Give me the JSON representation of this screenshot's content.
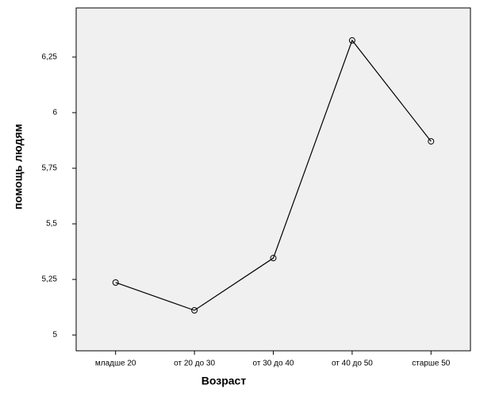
{
  "chart_data": {
    "type": "line",
    "x_label": "Возраст",
    "y_label": "помощь людям",
    "categories": [
      "младше 20",
      "от 20 до 30",
      "от 30 до 40",
      "от 40 до 50",
      "старше 50"
    ],
    "values": [
      5.236,
      5.111,
      5.346,
      6.325,
      5.871
    ],
    "color": "#000000",
    "ylim": [
      4.929,
      6.471
    ],
    "yticks": [
      5,
      {
        "value": 5.25,
        "label": "5,25"
      },
      {
        "value": 5.5,
        "label": "5,5"
      },
      {
        "value": 5.75,
        "label": "5,75"
      },
      6,
      {
        "value": 6.25,
        "label": "6,25"
      }
    ]
  }
}
